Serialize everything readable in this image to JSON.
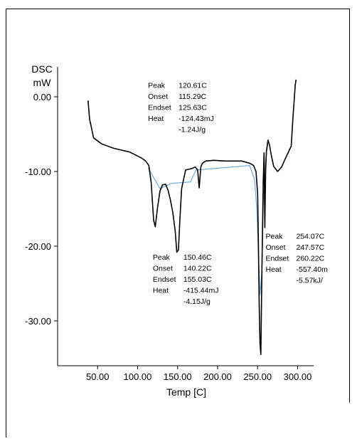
{
  "chart_data": {
    "type": "line",
    "ylabel_line1": "DSC",
    "ylabel_line2": "mW",
    "xlabel": "Temp [C]",
    "xlim": [
      0,
      320
    ],
    "ylim": [
      -36,
      4
    ],
    "xticks": [
      50,
      100,
      150,
      200,
      250,
      300
    ],
    "xtick_labels": [
      "50.00",
      "100.00",
      "150.00",
      "200.00",
      "250.00",
      "300.00"
    ],
    "yticks": [
      0,
      -10,
      -20,
      -30
    ],
    "ytick_labels": [
      "0.00",
      "-10.00",
      "-20.00",
      "-30.00"
    ],
    "series": [
      {
        "color": "#000000",
        "x": [
          38,
          40,
          45,
          55,
          70,
          90,
          105,
          110,
          114,
          117,
          120,
          122,
          125,
          128,
          131,
          135,
          138,
          141,
          144,
          147,
          149,
          151,
          153,
          155,
          160,
          168,
          172,
          175,
          177,
          179,
          181,
          185,
          195,
          210,
          230,
          240,
          245,
          248,
          250,
          251,
          252,
          253,
          254,
          255,
          257,
          258,
          259,
          260,
          261,
          263,
          265,
          267,
          270,
          275,
          280,
          285,
          289,
          292,
          294,
          296,
          297,
          298
        ],
        "y": [
          -0.5,
          -3.0,
          -5.5,
          -6.3,
          -6.9,
          -7.4,
          -8.2,
          -8.6,
          -9.2,
          -11.5,
          -16.5,
          -17.4,
          -14.8,
          -12.6,
          -11.8,
          -11.7,
          -12.5,
          -13.8,
          -15.5,
          -18.0,
          -20.8,
          -20.5,
          -16.2,
          -12.3,
          -9.8,
          -9.6,
          -9.4,
          -9.8,
          -12.2,
          -9.4,
          -8.9,
          -8.6,
          -8.5,
          -8.6,
          -8.6,
          -8.9,
          -9.2,
          -10.0,
          -13.0,
          -20.0,
          -28.0,
          -33.0,
          -34.5,
          -26.0,
          -11.5,
          -7.5,
          -17.5,
          -10.0,
          -7.3,
          -5.8,
          -6.5,
          -7.8,
          -9.3,
          -10.0,
          -9.4,
          -8.2,
          -7.3,
          -6.6,
          -3.0,
          0.0,
          1.5,
          2.3
        ]
      }
    ],
    "baselines": [
      {
        "color": "#6fa8dc",
        "x": [
          113,
          128,
          142,
          166,
          173,
          240,
          246,
          249,
          251,
          253,
          255,
          256,
          257,
          259,
          260,
          262,
          263
        ],
        "y": [
          -9.5,
          -12.3,
          -11.6,
          -11.4,
          -9.8,
          -9.2,
          -11.0,
          -15.0,
          -21.0,
          -26.5,
          -24.0,
          -19.5,
          -14.5,
          -10.5,
          -8.6,
          -6.8,
          -5.8
        ]
      }
    ],
    "annotations": [
      {
        "anchor_x": 113,
        "anchor_y": 1.2,
        "rows": [
          {
            "label": "Peak",
            "value": "120.61C"
          },
          {
            "label": "Onset",
            "value": "115.29C"
          },
          {
            "label": "Endset",
            "value": "125.63C"
          },
          {
            "label": "Heat",
            "value": "-124.43mJ"
          },
          {
            "label": "",
            "value": "-1.24J/g"
          }
        ]
      },
      {
        "anchor_x": 119,
        "anchor_y": -21.8,
        "rows": [
          {
            "label": "Peak",
            "value": "150.46C"
          },
          {
            "label": "Onset",
            "value": "140.22C"
          },
          {
            "label": "Endset",
            "value": "155.03C"
          },
          {
            "label": "Heat",
            "value": "-415.44mJ"
          },
          {
            "label": "",
            "value": "-4.15J/g"
          }
        ]
      },
      {
        "anchor_x": 260,
        "anchor_y": -19.0,
        "rows": [
          {
            "label": "Peak",
            "value": "254.07C"
          },
          {
            "label": "Onset",
            "value": "247.57C"
          },
          {
            "label": "Endset",
            "value": "260.22C"
          },
          {
            "label": "Heat",
            "value": "-557.40m"
          },
          {
            "label": "",
            "value": "-5.57kJ/"
          }
        ]
      }
    ]
  }
}
